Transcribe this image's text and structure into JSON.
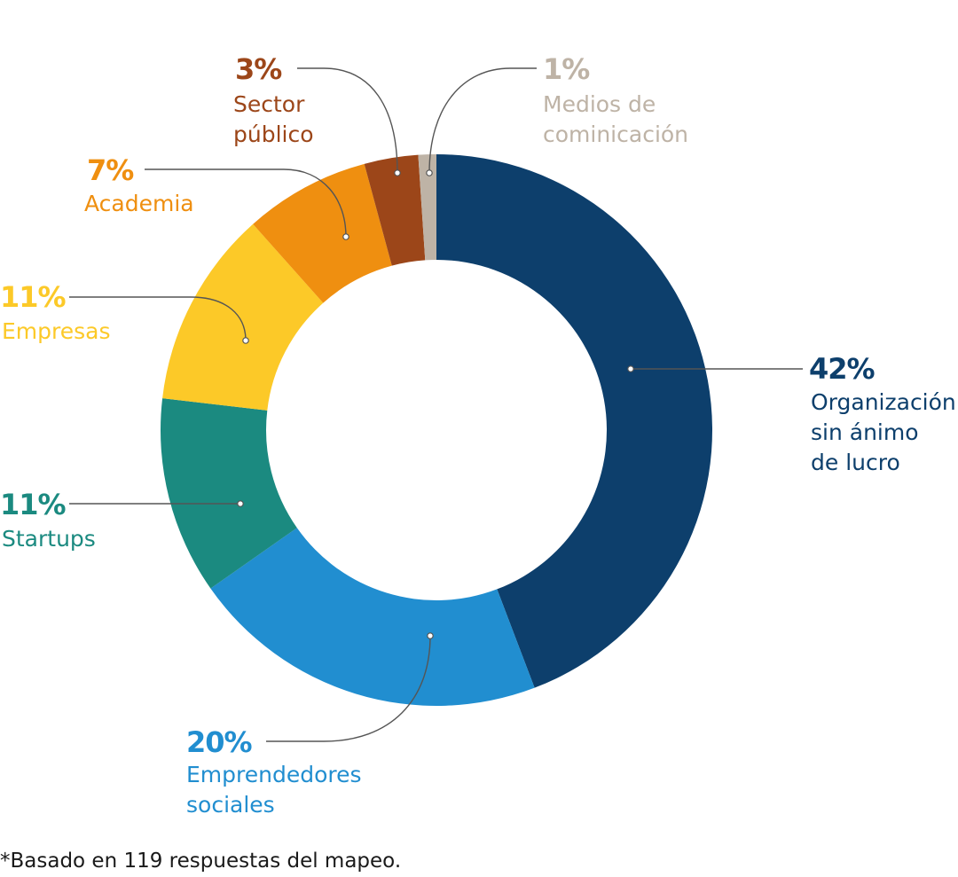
{
  "chart_data": {
    "type": "pie",
    "donut": true,
    "title": "",
    "start": "top",
    "direction": "clockwise",
    "slices": [
      {
        "value": 42,
        "pct_label": "42%",
        "label_lines": [
          "Organización",
          "sin ánimo",
          "de lucro"
        ],
        "color": "#0d3f6c"
      },
      {
        "value": 20,
        "pct_label": "20%",
        "label_lines": [
          "Emprendedores",
          "sociales"
        ],
        "color": "#218ed0"
      },
      {
        "value": 11,
        "pct_label": "11%",
        "label_lines": [
          "Startups"
        ],
        "color": "#1b8a80"
      },
      {
        "value": 11,
        "pct_label": "11%",
        "label_lines": [
          "Empresas"
        ],
        "color": "#fcc928"
      },
      {
        "value": 7,
        "pct_label": "7%",
        "label_lines": [
          "Academia"
        ],
        "color": "#ef8f10"
      },
      {
        "value": 3,
        "pct_label": "3%",
        "label_lines": [
          "Sector",
          "público"
        ],
        "color": "#9c4619"
      },
      {
        "value": 1,
        "pct_label": "1%",
        "label_lines": [
          "Medios de",
          "cominicación"
        ],
        "color": "#beb3a6"
      }
    ]
  },
  "footnote": "*Basado en 119 respuestas del mapeo."
}
